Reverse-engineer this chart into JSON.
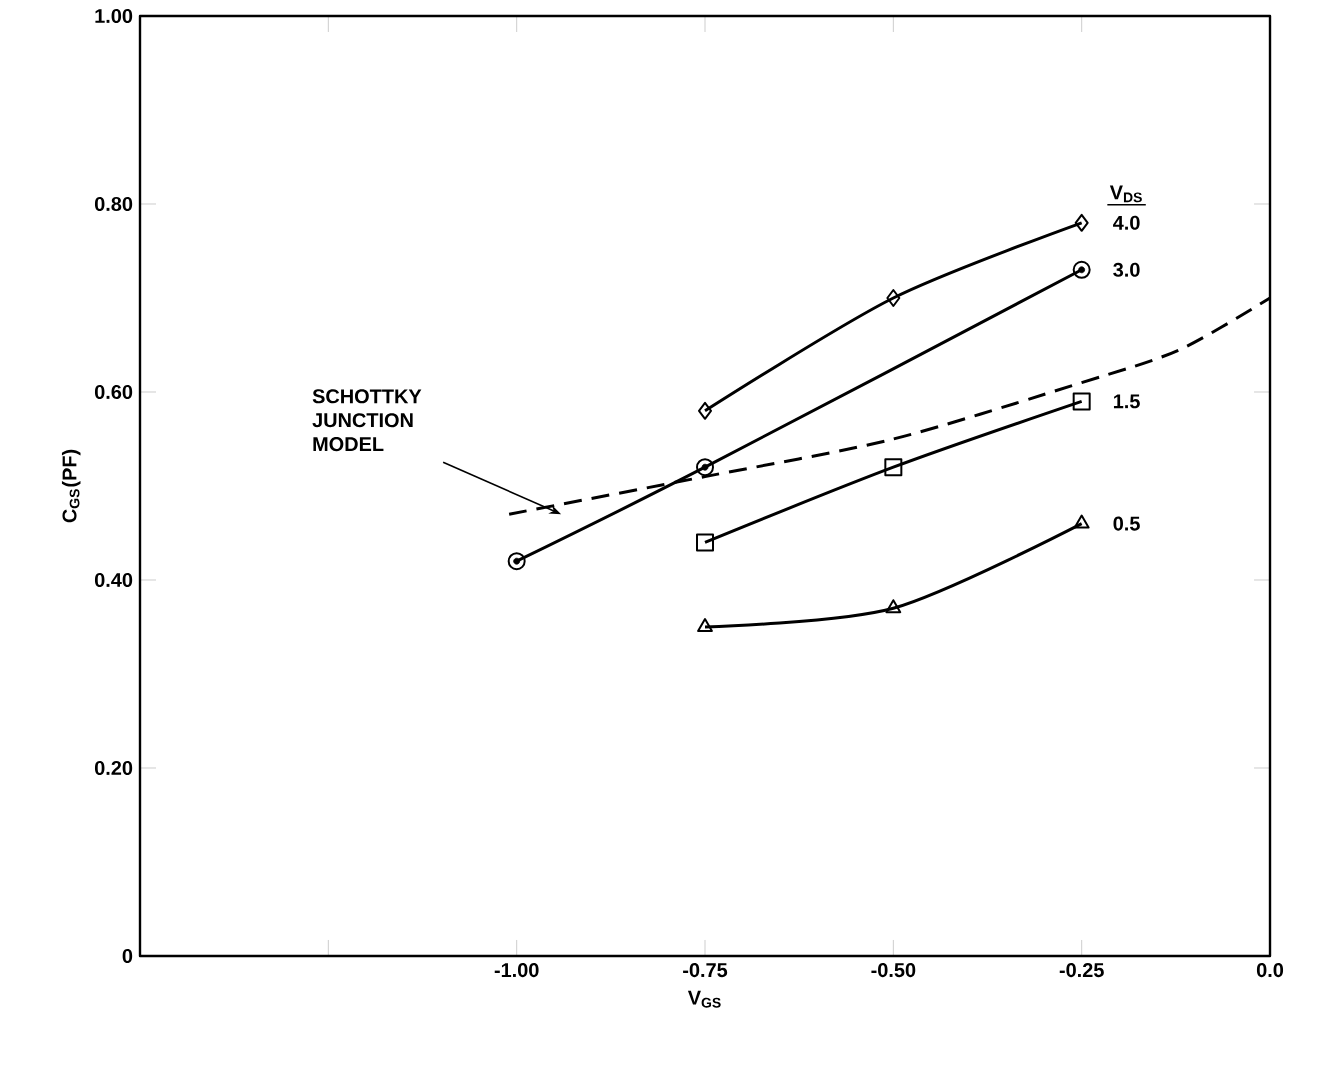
{
  "chart_data": {
    "type": "line",
    "xlabel": "V$_{GS}$",
    "ylabel": "C$_{GS}$(PF)",
    "legend_title": "V$_{DS}$",
    "xlim": [
      -1.5,
      0
    ],
    "ylim": [
      0,
      1
    ],
    "xticks": [
      {
        "value": -1.25,
        "label": null
      },
      {
        "value": -1,
        "label": "-1.00"
      },
      {
        "value": -0.75,
        "label": "-0.75"
      },
      {
        "value": -0.5,
        "label": "-0.50"
      },
      {
        "value": -0.25,
        "label": "-0.25"
      },
      {
        "value": 0,
        "label": "0.0"
      }
    ],
    "yticks": [
      {
        "value": 0,
        "label": "0"
      },
      {
        "value": 0.2,
        "label": "0.20"
      },
      {
        "value": 0.4,
        "label": "0.40"
      },
      {
        "value": 0.6,
        "label": "0.60"
      },
      {
        "value": 0.8,
        "label": "0.80"
      },
      {
        "value": 1,
        "label": "1.00"
      }
    ],
    "series": [
      {
        "name": "4.0",
        "color": "#000000",
        "marker": "diamond",
        "line_style": "solid",
        "x": [
          -0.75,
          -0.5,
          -0.25
        ],
        "values": [
          0.58,
          0.7,
          0.78
        ]
      },
      {
        "name": "3.0",
        "color": "#000000",
        "marker": "circle",
        "line_style": "solid",
        "x": [
          -1.0,
          -0.75,
          -0.25
        ],
        "values": [
          0.42,
          0.52,
          0.73
        ]
      },
      {
        "name": "1.5",
        "color": "#000000",
        "marker": "square",
        "line_style": "solid",
        "x": [
          -0.75,
          -0.5,
          -0.25
        ],
        "values": [
          0.44,
          0.52,
          0.59
        ]
      },
      {
        "name": "0.5",
        "color": "#000000",
        "marker": "triangle",
        "line_style": "solid",
        "x": [
          -0.75,
          -0.5,
          -0.25
        ],
        "values": [
          0.35,
          0.37,
          0.46
        ]
      },
      {
        "name": "SCHOTTKY JUNCTION MODEL",
        "color": "#000000",
        "marker": "none",
        "line_style": "dashed",
        "x": [
          -1.01,
          -0.75,
          -0.5,
          -0.25,
          -0.12,
          0
        ],
        "values": [
          0.47,
          0.51,
          0.55,
          0.61,
          0.645,
          0.7
        ]
      }
    ]
  }
}
